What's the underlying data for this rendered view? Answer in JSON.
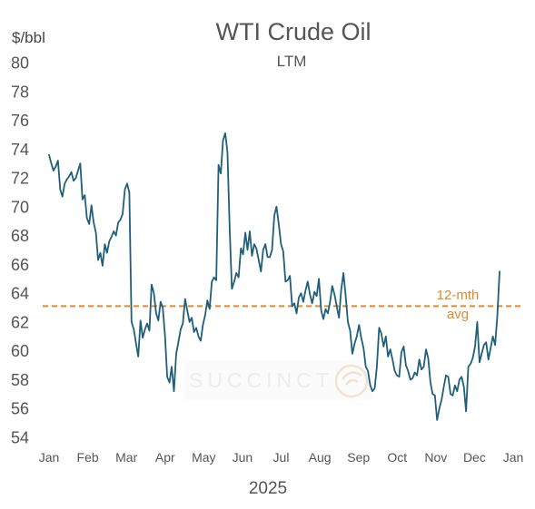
{
  "chart_data": {
    "type": "line",
    "title": "WTI Crude Oil",
    "subtitle": "LTM",
    "ylabel": "$/bbl",
    "xlabel": "2025",
    "ylim": [
      54,
      80
    ],
    "yticks": [
      54,
      56,
      58,
      60,
      62,
      64,
      66,
      68,
      70,
      72,
      74,
      76,
      78,
      80
    ],
    "month_ticks": [
      "Jan",
      "Feb",
      "Mar",
      "Apr",
      "May",
      "Jun",
      "Jul",
      "Aug",
      "Sep",
      "Oct",
      "Nov",
      "Dec",
      "Jan"
    ],
    "grid": false,
    "line_color": "#1f5f7a",
    "average": {
      "label_line1": "12-mth",
      "label_line2": "avg",
      "value": 63.1,
      "color": "#e08a2e"
    },
    "watermark": {
      "text": "SUCCINCT",
      "color": "#f2e2d4"
    },
    "series": [
      {
        "values": [
          73.6,
          73.0,
          72.5,
          72.8,
          73.2,
          71.2,
          70.7,
          71.6,
          71.9,
          72.1,
          72.4,
          71.8,
          72.0,
          72.5,
          73.0,
          70.5,
          70.8,
          69.2,
          68.8,
          70.1,
          68.9,
          68.2,
          66.3,
          66.8,
          65.9,
          67.4,
          66.8,
          67.6,
          67.9,
          68.3,
          68.0,
          68.9,
          69.1,
          69.5,
          71.2,
          71.6,
          71.0,
          62.0,
          61.5,
          60.5,
          59.6,
          62.1,
          60.9,
          61.5,
          61.9,
          61.4,
          64.6,
          64.0,
          62.6,
          62.1,
          63.4,
          63.0,
          61.0,
          58.2,
          57.8,
          58.9,
          57.2,
          59.8,
          60.6,
          61.5,
          61.9,
          63.6,
          62.8,
          62.0,
          62.3,
          61.3,
          61.6,
          61.0,
          60.7,
          61.8,
          62.5,
          63.5,
          62.9,
          64.8,
          65.1,
          64.9,
          72.9,
          72.3,
          74.6,
          75.1,
          73.8,
          68.4,
          64.3,
          64.8,
          65.4,
          65.1,
          67.1,
          66.7,
          68.2,
          67.0,
          68.3,
          66.6,
          67.4,
          67.1,
          66.3,
          65.5,
          67.0,
          67.4,
          66.5,
          66.5,
          67.0,
          69.4,
          70.0,
          68.8,
          67.4,
          66.9,
          64.8,
          64.9,
          65.2,
          63.1,
          63.3,
          62.6,
          63.7,
          64.0,
          63.4,
          64.2,
          64.8,
          63.9,
          63.3,
          64.1,
          63.8,
          65.0,
          62.8,
          62.2,
          62.9,
          62.6,
          63.4,
          64.5,
          63.9,
          63.1,
          62.3,
          64.2,
          65.4,
          63.8,
          62.0,
          61.4,
          59.8,
          60.5,
          61.0,
          61.8,
          60.9,
          60.2,
          58.9,
          58.6,
          57.6,
          57.2,
          57.4,
          58.9,
          61.6,
          61.2,
          60.3,
          61.0,
          59.6,
          60.1,
          59.4,
          58.6,
          58.3,
          58.2,
          59.9,
          60.3,
          59.0,
          58.6,
          58.0,
          58.1,
          58.5,
          58.3,
          59.4,
          58.7,
          58.9,
          60.1,
          59.5,
          57.8,
          57.0,
          56.9,
          55.2,
          56.0,
          56.6,
          57.5,
          58.3,
          58.2,
          57.0,
          56.9,
          57.6,
          57.2,
          58.0,
          58.2,
          57.5,
          55.8,
          58.9,
          59.1,
          59.5,
          60.3,
          62.0,
          59.2,
          59.8,
          60.4,
          60.6,
          59.4,
          60.2,
          61.0,
          60.4,
          62.4,
          65.5
        ]
      }
    ]
  }
}
